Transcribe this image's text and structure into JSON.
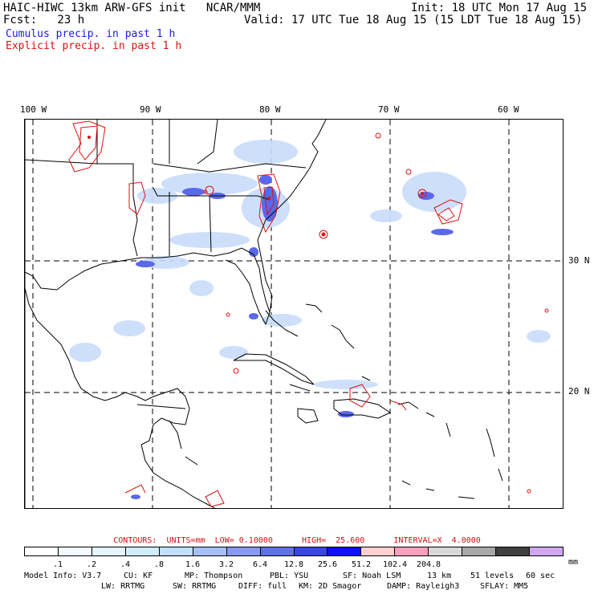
{
  "header": {
    "title": "HAIC-HIWC 13km ARW-GFS init   NCAR/MMM",
    "init": "Init: 18 UTC Mon 17 Aug 15",
    "fcst_label": "Fcst:   23 h",
    "valid": "Valid: 17 UTC Tue 18 Aug 15 (15 LDT Tue 18 Aug 15)",
    "cumulus": "Cumulus precip. in past 1 h",
    "explicit": "Explicit precip. in past 1 h"
  },
  "map": {
    "lon_labels": [
      "100 W",
      "90 W",
      "80 W",
      "70 W",
      "60 W"
    ],
    "lat_labels": [
      "30 N",
      "20 N"
    ],
    "colors": {
      "cumulus": "#3a4fe8",
      "explicit": "#e01010",
      "coast": "#000000"
    }
  },
  "contours": {
    "text": "CONTOURS:  UNITS=mm  LOW= 0.10000      HIGH=  25.600      INTERVAL=X  4.0000"
  },
  "colorbar": {
    "colors": [
      "#ffffff",
      "#f4fbff",
      "#e6f4ff",
      "#d2ecff",
      "#c2defc",
      "#a8c0f7",
      "#8a98f0",
      "#6070ea",
      "#3a44e8",
      "#1010f0",
      "#ffd0d0",
      "#f7a0c0",
      "#d8d8d8",
      "#a8a8a8",
      "#404040",
      "#d0a8f0"
    ],
    "ticks": [
      ".1",
      ".2",
      ".4",
      ".8",
      "1.6",
      "3.2",
      "6.4",
      "12.8",
      "25.6",
      "51.2",
      "102.4",
      "204.8"
    ],
    "units": "mm"
  },
  "model_info": {
    "line1": [
      "Model Info: V3.7",
      "CU: KF",
      "MP: Thompson",
      "PBL: YSU",
      "SF: Noah LSM",
      "13 km",
      "51 levels",
      "60 sec"
    ],
    "line2": [
      "LW: RRTMG",
      "SW: RRTMG",
      "DIFF: full",
      "KM: 2D Smagor",
      "DAMP: Rayleigh3",
      "SFLAY: MM5"
    ]
  }
}
